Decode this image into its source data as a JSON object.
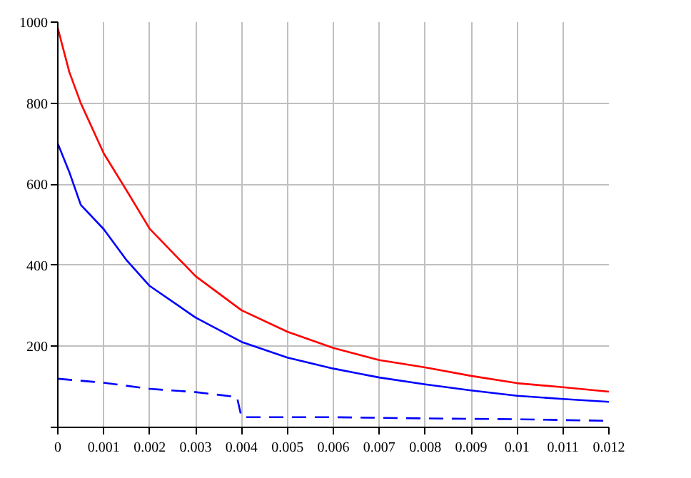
{
  "chart_data": {
    "type": "line",
    "x": [
      0,
      0.00025,
      0.0005,
      0.001,
      0.0015,
      0.002,
      0.003,
      0.004,
      0.005,
      0.006,
      0.007,
      0.008,
      0.009,
      0.01,
      0.011,
      0.012
    ],
    "series": [
      {
        "color": "#ff0000",
        "values": [
          985,
          877,
          800,
          676,
          584,
          490,
          373,
          289,
          236,
          196,
          166,
          148,
          127,
          109,
          99,
          88
        ]
      },
      {
        "color": "#0000ff",
        "values": [
          700,
          630,
          549,
          489,
          412,
          349,
          271,
          211,
          172,
          145,
          123,
          106,
          91,
          78,
          70,
          63
        ]
      },
      {
        "color": "#0000ff",
        "line_style": "dashed",
        "x": [
          0,
          0.001,
          0.002,
          0.003,
          0.0039,
          0.004,
          0.006,
          0.008,
          0.01,
          0.012
        ],
        "values": [
          120,
          110,
          95,
          87,
          75,
          25,
          25,
          22,
          20,
          16
        ]
      }
    ],
    "xlim": [
      0,
      0.012
    ],
    "ylim": [
      0,
      1000
    ],
    "xticks": [
      0,
      0.001,
      0.002,
      0.003,
      0.004,
      0.005,
      0.006,
      0.007,
      0.008,
      0.009,
      0.01,
      0.011,
      0.012
    ],
    "yticks": [
      {
        "value": 0,
        "label": null
      },
      200,
      400,
      600,
      800,
      1000
    ],
    "grid": true,
    "marker": "none",
    "line_style": "solid"
  }
}
